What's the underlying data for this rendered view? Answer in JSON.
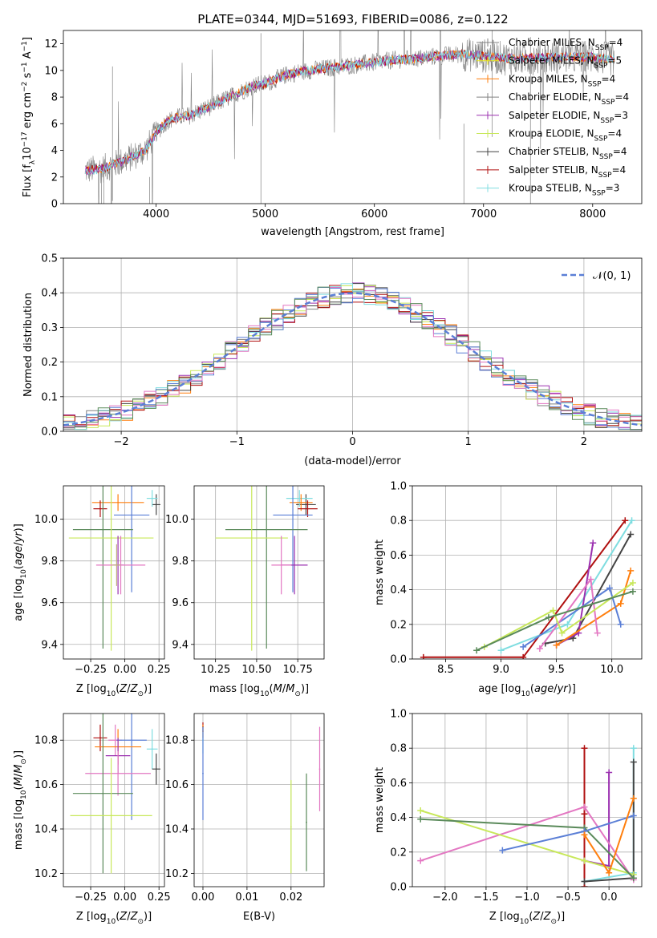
{
  "figure": {
    "title": "PLATE=0344, MJD=51693, FIBERID=0086, z=0.122"
  },
  "model_labels": [
    "Chabrier MILES, N_SSP=4",
    "Salpeter MILES, N_SSP=5",
    "Kroupa MILES, N_SSP=4",
    "Chabrier ELODIE, N_SSP=4",
    "Salpeter ELODIE, N_SSP=3",
    "Kroupa ELODIE, N_SSP=4",
    "Chabrier STELIB, N_SSP=4",
    "Salpeter STELIB, N_SSP=4",
    "Kroupa STELIB, N_SSP=3"
  ],
  "model_colors": [
    "#808080",
    "#e6e61a",
    "#ff7f0e",
    "#808080",
    "#9b30b0",
    "#c8e85a",
    "#444444",
    "#b01010",
    "#7fdde0"
  ],
  "chart_data": [
    {
      "id": "spectrum",
      "type": "line",
      "title": "PLATE=0344, MJD=51693, FIBERID=0086, z=0.122",
      "xlabel": "wavelength [Angstrom, rest frame]",
      "ylabel": "Flux [f_λ 10^-17 erg cm^-2 s^-1 A^-1]",
      "xlim": [
        3150,
        8450
      ],
      "ylim": [
        0,
        13
      ],
      "xticks": [
        4000,
        5000,
        6000,
        7000,
        8000
      ],
      "yticks": [
        0,
        2,
        4,
        6,
        8,
        10,
        12
      ],
      "legend_position": "top-right",
      "continuum": {
        "x": [
          3350,
          3500,
          3700,
          3900,
          4000,
          4100,
          4200,
          4300,
          4500,
          4700,
          4900,
          5000,
          5200,
          5400,
          5600,
          5800,
          6000,
          6200,
          6400,
          6600,
          6800,
          7000,
          7200,
          7400,
          7600,
          7800,
          8000,
          8200
        ],
        "y": [
          2.5,
          2.6,
          3.2,
          4.0,
          5.3,
          6.2,
          6.5,
          6.6,
          7.3,
          8.1,
          8.9,
          9.0,
          9.7,
          10.0,
          10.2,
          10.4,
          10.6,
          10.8,
          10.9,
          11.1,
          11.2,
          11.1,
          10.9,
          10.9,
          11.0,
          11.0,
          11.0,
          10.8
        ]
      }
    },
    {
      "id": "residuals",
      "type": "line",
      "xlabel": "(data-model)/error",
      "ylabel": "Normed distribution",
      "xlim": [
        -2.5,
        2.5
      ],
      "ylim": [
        0,
        0.5
      ],
      "xticks": [
        -2,
        -1,
        0,
        1,
        2
      ],
      "yticks": [
        0.0,
        0.1,
        0.2,
        0.3,
        0.4,
        0.5
      ],
      "grid": true,
      "legend_position": "top-right",
      "reference_curve": {
        "name": "N(0,1)",
        "label_text": "𝒩(0, 1)",
        "mean": 0,
        "sigma": 1,
        "color": "#5b7fd6"
      }
    },
    {
      "id": "age_vs_Z",
      "type": "scatter",
      "xlabel": "Z [log10(Z/Z⊙)]",
      "ylabel": "age [log10(age/yr)]",
      "xlim": [
        -0.45,
        0.29
      ],
      "ylim": [
        9.33,
        10.16
      ],
      "xticks": [
        -0.25,
        0.0,
        0.25
      ],
      "yticks": [
        9.4,
        9.6,
        9.8,
        10.0
      ],
      "grid": true,
      "points": [
        {
          "x": 0.23,
          "y": 10.07,
          "xerr": 0.03,
          "yerr": 0.05,
          "color": "#444444"
        },
        {
          "x": 0.2,
          "y": 10.1,
          "xerr": 0.04,
          "yerr": 0.04,
          "color": "#7fdde0"
        },
        {
          "x": -0.05,
          "y": 10.08,
          "xerr": 0.19,
          "yerr": 0.04,
          "color": "#ff7f0e"
        },
        {
          "x": -0.18,
          "y": 10.05,
          "xerr": 0.05,
          "yerr": 0.04,
          "color": "#b01010"
        },
        {
          "x": 0.05,
          "y": 10.02,
          "xerr": 0.13,
          "yerr": 0.37,
          "color": "#5b7fd6"
        },
        {
          "x": -0.16,
          "y": 9.95,
          "xerr": 0.22,
          "yerr": 0.57,
          "color": "#5a8a5a"
        },
        {
          "x": -0.1,
          "y": 9.91,
          "xerr": 0.31,
          "yerr": 0.54,
          "color": "#c8e85a"
        },
        {
          "x": -0.05,
          "y": 9.78,
          "xerr": 0.04,
          "yerr": 0.14,
          "color": "#9b30b0"
        },
        {
          "x": -0.03,
          "y": 9.78,
          "xerr": 0.18,
          "yerr": 0.14,
          "color": "#e377c2"
        },
        {
          "x": -0.06,
          "y": 9.78,
          "xerr": 0.03,
          "yerr": 0.1,
          "color": "#c0b080"
        }
      ]
    },
    {
      "id": "age_vs_mass",
      "type": "scatter",
      "xlabel": "mass [log10(M/M⊙)]",
      "ylabel": "",
      "xlim": [
        10.12,
        10.91
      ],
      "ylim": [
        9.33,
        10.16
      ],
      "xticks": [
        10.25,
        10.5,
        10.75
      ],
      "yticks": [
        9.4,
        9.6,
        9.8,
        10.0
      ],
      "grid": true,
      "points": [
        {
          "x": 10.8,
          "y": 10.07,
          "xerr": 0.06,
          "yerr": 0.05,
          "color": "#444444"
        },
        {
          "x": 10.76,
          "y": 10.1,
          "xerr": 0.08,
          "yerr": 0.04,
          "color": "#7fdde0"
        },
        {
          "x": 10.77,
          "y": 10.08,
          "xerr": 0.07,
          "yerr": 0.04,
          "color": "#ff7f0e"
        },
        {
          "x": 10.81,
          "y": 10.05,
          "xerr": 0.06,
          "yerr": 0.04,
          "color": "#b01010"
        },
        {
          "x": 10.72,
          "y": 10.02,
          "xerr": 0.12,
          "yerr": 0.37,
          "color": "#5b7fd6"
        },
        {
          "x": 10.56,
          "y": 9.95,
          "xerr": 0.25,
          "yerr": 0.57,
          "color": "#5a8a5a"
        },
        {
          "x": 10.47,
          "y": 9.91,
          "xerr": 0.22,
          "yerr": 0.54,
          "color": "#c8e85a"
        },
        {
          "x": 10.73,
          "y": 9.78,
          "xerr": 0.08,
          "yerr": 0.14,
          "color": "#9b30b0"
        },
        {
          "x": 10.65,
          "y": 9.78,
          "xerr": 0.06,
          "yerr": 0.14,
          "color": "#e377c2"
        }
      ]
    },
    {
      "id": "mass_weight_vs_age",
      "type": "line",
      "xlabel": "age [log10(age/yr)]",
      "ylabel": "mass weight",
      "xlim": [
        8.2,
        10.27
      ],
      "ylim": [
        0,
        1
      ],
      "xticks": [
        8.5,
        9.0,
        9.5,
        10.0
      ],
      "yticks": [
        0.0,
        0.2,
        0.4,
        0.6,
        0.8,
        1.0
      ],
      "grid": true,
      "series": [
        {
          "color": "#b01010",
          "x": [
            8.3,
            9.2,
            10.12
          ],
          "y": [
            0.01,
            0.01,
            0.8
          ]
        },
        {
          "color": "#7fdde0",
          "x": [
            9.0,
            9.6,
            10.18
          ],
          "y": [
            0.05,
            0.2,
            0.8
          ]
        },
        {
          "color": "#444444",
          "x": [
            9.4,
            9.65,
            10.17
          ],
          "y": [
            0.09,
            0.12,
            0.72
          ]
        },
        {
          "color": "#9b30b0",
          "x": [
            9.5,
            9.7,
            9.83
          ],
          "y": [
            0.08,
            0.15,
            0.67
          ]
        },
        {
          "color": "#ff7f0e",
          "x": [
            9.5,
            10.08,
            10.17
          ],
          "y": [
            0.08,
            0.32,
            0.51
          ]
        },
        {
          "color": "#5b7fd6",
          "x": [
            9.2,
            9.98,
            10.08
          ],
          "y": [
            0.07,
            0.41,
            0.2
          ]
        },
        {
          "color": "#e377c2",
          "x": [
            9.35,
            9.81,
            9.87
          ],
          "y": [
            0.06,
            0.46,
            0.15
          ]
        },
        {
          "color": "#c8e85a",
          "x": [
            8.85,
            9.47,
            9.55,
            10.19
          ],
          "y": [
            0.07,
            0.28,
            0.15,
            0.44
          ]
        },
        {
          "color": "#5a8a5a",
          "x": [
            8.78,
            9.43,
            10.19
          ],
          "y": [
            0.05,
            0.24,
            0.39
          ]
        }
      ]
    },
    {
      "id": "mass_vs_Z",
      "type": "scatter",
      "xlabel": "Z [log10(Z/Z⊙)]",
      "ylabel": "mass [log10(M/M⊙)]",
      "xlim": [
        -0.45,
        0.29
      ],
      "ylim": [
        10.14,
        10.92
      ],
      "xticks": [
        -0.25,
        0.0,
        0.25
      ],
      "yticks": [
        10.2,
        10.4,
        10.6,
        10.8
      ],
      "grid": true,
      "points": [
        {
          "x": -0.18,
          "y": 10.81,
          "xerr": 0.05,
          "yerr": 0.06,
          "color": "#b01010"
        },
        {
          "x": -0.07,
          "y": 10.8,
          "xerr": 0.05,
          "yerr": 0.07,
          "color": "#e377c2"
        },
        {
          "x": 0.05,
          "y": 10.8,
          "xerr": 0.11,
          "yerr": 0.36,
          "color": "#5b7fd6"
        },
        {
          "x": -0.05,
          "y": 10.77,
          "xerr": 0.17,
          "yerr": 0.08,
          "color": "#ff7f0e"
        },
        {
          "x": 0.2,
          "y": 10.76,
          "xerr": 0.04,
          "yerr": 0.09,
          "color": "#7fdde0"
        },
        {
          "x": -0.05,
          "y": 10.73,
          "xerr": 0.09,
          "yerr": 0.08,
          "color": "#9b30b0"
        },
        {
          "x": 0.23,
          "y": 10.67,
          "xerr": 0.03,
          "yerr": 0.07,
          "color": "#444444"
        },
        {
          "x": -0.05,
          "y": 10.65,
          "xerr": 0.24,
          "yerr": 0.1,
          "color": "#e377c2"
        },
        {
          "x": -0.16,
          "y": 10.56,
          "xerr": 0.22,
          "yerr": 0.36,
          "color": "#5a8a5a"
        },
        {
          "x": -0.1,
          "y": 10.46,
          "xerr": 0.3,
          "yerr": 0.26,
          "color": "#c8e85a"
        }
      ]
    },
    {
      "id": "mass_vs_ebv",
      "type": "scatter",
      "xlabel": "E(B-V)",
      "ylabel": "",
      "xlim": [
        -0.002,
        0.0275
      ],
      "ylim": [
        10.14,
        10.92
      ],
      "xticks": [
        0.0,
        0.01,
        0.02
      ],
      "yticks": [
        10.2,
        10.4,
        10.6,
        10.8
      ],
      "grid": true,
      "points": [
        {
          "x": 0.0,
          "y": 10.86,
          "xerr": 0,
          "yerr": 0.02,
          "color": "#b01010"
        },
        {
          "x": 0.0,
          "y": 10.84,
          "xerr": 0,
          "yerr": 0.03,
          "color": "#ff7f0e"
        },
        {
          "x": 0.0,
          "y": 10.8,
          "xerr": 0,
          "yerr": 0.06,
          "color": "#7fdde0"
        },
        {
          "x": 0.0,
          "y": 10.65,
          "xerr": 0,
          "yerr": 0.21,
          "color": "#5b7fd6"
        },
        {
          "x": 0.02,
          "y": 10.41,
          "xerr": 0,
          "yerr": 0.21,
          "color": "#c8e85a"
        },
        {
          "x": 0.0235,
          "y": 10.43,
          "xerr": 0,
          "yerr": 0.22,
          "color": "#5a8a5a"
        },
        {
          "x": 0.0265,
          "y": 10.67,
          "xerr": 0,
          "yerr": 0.19,
          "color": "#e377c2"
        }
      ]
    },
    {
      "id": "mass_weight_vs_Z",
      "type": "line",
      "xlabel": "Z [log10(Z/Z⊙)]",
      "ylabel": "mass weight",
      "xlim": [
        -2.4,
        0.4
      ],
      "ylim": [
        0,
        1
      ],
      "xticks": [
        -2.0,
        -1.5,
        -1.0,
        -0.5,
        0.0
      ],
      "yticks": [
        0.0,
        0.2,
        0.4,
        0.6,
        0.8,
        1.0
      ],
      "grid": true,
      "series": [
        {
          "color": "#b01010",
          "x": [
            -0.3,
            -0.3,
            -0.3
          ],
          "y": [
            0.0,
            0.42,
            0.8
          ]
        },
        {
          "color": "#7fdde0",
          "x": [
            -0.3,
            0.3,
            0.3
          ],
          "y": [
            0.03,
            0.08,
            0.8
          ]
        },
        {
          "color": "#444444",
          "x": [
            -0.3,
            0.3,
            0.3
          ],
          "y": [
            0.03,
            0.05,
            0.72
          ]
        },
        {
          "color": "#9b30b0",
          "x": [
            -0.3,
            0.0,
            0.0
          ],
          "y": [
            0.15,
            0.12,
            0.66
          ]
        },
        {
          "color": "#e377c2",
          "x": [
            -2.3,
            -0.3,
            0.3
          ],
          "y": [
            0.15,
            0.46,
            0.04
          ]
        },
        {
          "color": "#c8e85a",
          "x": [
            -2.3,
            -0.3,
            0.3
          ],
          "y": [
            0.44,
            0.15,
            0.07
          ]
        },
        {
          "color": "#5a8a5a",
          "x": [
            -2.3,
            -0.3,
            0.3
          ],
          "y": [
            0.39,
            0.34,
            0.05
          ]
        },
        {
          "color": "#5b7fd6",
          "x": [
            -1.3,
            -0.3,
            0.3
          ],
          "y": [
            0.21,
            0.32,
            0.41
          ]
        },
        {
          "color": "#ff7f0e",
          "x": [
            -0.3,
            0.0,
            0.3
          ],
          "y": [
            0.3,
            0.08,
            0.51
          ]
        }
      ]
    }
  ]
}
